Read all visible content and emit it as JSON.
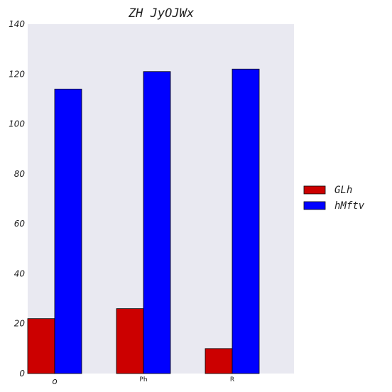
{
  "chart_data": {
    "type": "bar",
    "title": "ZH JyOJWx",
    "categories": [
      "o",
      "Ph",
      "R"
    ],
    "series": [
      {
        "name": "GLh",
        "color": "#cc0000",
        "values": [
          22,
          26,
          10
        ]
      },
      {
        "name": "hMftv",
        "color": "#0000ff",
        "values": [
          114,
          121,
          122
        ]
      }
    ],
    "xlabel": "",
    "ylabel": "",
    "ylim": [
      0,
      140
    ],
    "yticks": [
      "0",
      "20",
      "40",
      "60",
      "80",
      "100",
      "120",
      "140"
    ],
    "grid": false,
    "legend_position": "right",
    "plot_background": "#e9e9f1"
  }
}
